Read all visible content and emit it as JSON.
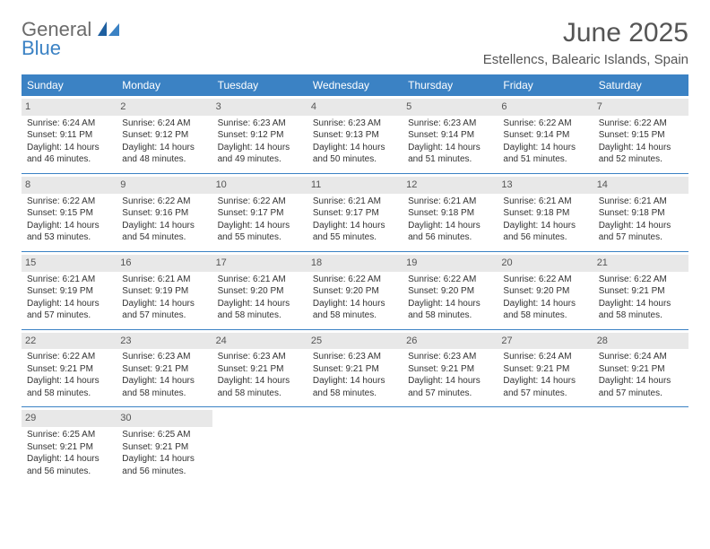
{
  "brand": {
    "text1": "General",
    "text2": "Blue"
  },
  "title": "June 2025",
  "location": "Estellencs, Balearic Islands, Spain",
  "colors": {
    "header_bg": "#3b82c4",
    "header_text": "#ffffff",
    "daynum_bg": "#e8e8e8",
    "body_text": "#333333",
    "title_text": "#555555",
    "row_divider": "#3b82c4"
  },
  "day_headers": [
    "Sunday",
    "Monday",
    "Tuesday",
    "Wednesday",
    "Thursday",
    "Friday",
    "Saturday"
  ],
  "weeks": [
    [
      {
        "n": "1",
        "sunrise": "6:24 AM",
        "sunset": "9:11 PM",
        "daylight": "14 hours and 46 minutes."
      },
      {
        "n": "2",
        "sunrise": "6:24 AM",
        "sunset": "9:12 PM",
        "daylight": "14 hours and 48 minutes."
      },
      {
        "n": "3",
        "sunrise": "6:23 AM",
        "sunset": "9:12 PM",
        "daylight": "14 hours and 49 minutes."
      },
      {
        "n": "4",
        "sunrise": "6:23 AM",
        "sunset": "9:13 PM",
        "daylight": "14 hours and 50 minutes."
      },
      {
        "n": "5",
        "sunrise": "6:23 AM",
        "sunset": "9:14 PM",
        "daylight": "14 hours and 51 minutes."
      },
      {
        "n": "6",
        "sunrise": "6:22 AM",
        "sunset": "9:14 PM",
        "daylight": "14 hours and 51 minutes."
      },
      {
        "n": "7",
        "sunrise": "6:22 AM",
        "sunset": "9:15 PM",
        "daylight": "14 hours and 52 minutes."
      }
    ],
    [
      {
        "n": "8",
        "sunrise": "6:22 AM",
        "sunset": "9:15 PM",
        "daylight": "14 hours and 53 minutes."
      },
      {
        "n": "9",
        "sunrise": "6:22 AM",
        "sunset": "9:16 PM",
        "daylight": "14 hours and 54 minutes."
      },
      {
        "n": "10",
        "sunrise": "6:22 AM",
        "sunset": "9:17 PM",
        "daylight": "14 hours and 55 minutes."
      },
      {
        "n": "11",
        "sunrise": "6:21 AM",
        "sunset": "9:17 PM",
        "daylight": "14 hours and 55 minutes."
      },
      {
        "n": "12",
        "sunrise": "6:21 AM",
        "sunset": "9:18 PM",
        "daylight": "14 hours and 56 minutes."
      },
      {
        "n": "13",
        "sunrise": "6:21 AM",
        "sunset": "9:18 PM",
        "daylight": "14 hours and 56 minutes."
      },
      {
        "n": "14",
        "sunrise": "6:21 AM",
        "sunset": "9:18 PM",
        "daylight": "14 hours and 57 minutes."
      }
    ],
    [
      {
        "n": "15",
        "sunrise": "6:21 AM",
        "sunset": "9:19 PM",
        "daylight": "14 hours and 57 minutes."
      },
      {
        "n": "16",
        "sunrise": "6:21 AM",
        "sunset": "9:19 PM",
        "daylight": "14 hours and 57 minutes."
      },
      {
        "n": "17",
        "sunrise": "6:21 AM",
        "sunset": "9:20 PM",
        "daylight": "14 hours and 58 minutes."
      },
      {
        "n": "18",
        "sunrise": "6:22 AM",
        "sunset": "9:20 PM",
        "daylight": "14 hours and 58 minutes."
      },
      {
        "n": "19",
        "sunrise": "6:22 AM",
        "sunset": "9:20 PM",
        "daylight": "14 hours and 58 minutes."
      },
      {
        "n": "20",
        "sunrise": "6:22 AM",
        "sunset": "9:20 PM",
        "daylight": "14 hours and 58 minutes."
      },
      {
        "n": "21",
        "sunrise": "6:22 AM",
        "sunset": "9:21 PM",
        "daylight": "14 hours and 58 minutes."
      }
    ],
    [
      {
        "n": "22",
        "sunrise": "6:22 AM",
        "sunset": "9:21 PM",
        "daylight": "14 hours and 58 minutes."
      },
      {
        "n": "23",
        "sunrise": "6:23 AM",
        "sunset": "9:21 PM",
        "daylight": "14 hours and 58 minutes."
      },
      {
        "n": "24",
        "sunrise": "6:23 AM",
        "sunset": "9:21 PM",
        "daylight": "14 hours and 58 minutes."
      },
      {
        "n": "25",
        "sunrise": "6:23 AM",
        "sunset": "9:21 PM",
        "daylight": "14 hours and 58 minutes."
      },
      {
        "n": "26",
        "sunrise": "6:23 AM",
        "sunset": "9:21 PM",
        "daylight": "14 hours and 57 minutes."
      },
      {
        "n": "27",
        "sunrise": "6:24 AM",
        "sunset": "9:21 PM",
        "daylight": "14 hours and 57 minutes."
      },
      {
        "n": "28",
        "sunrise": "6:24 AM",
        "sunset": "9:21 PM",
        "daylight": "14 hours and 57 minutes."
      }
    ],
    [
      {
        "n": "29",
        "sunrise": "6:25 AM",
        "sunset": "9:21 PM",
        "daylight": "14 hours and 56 minutes."
      },
      {
        "n": "30",
        "sunrise": "6:25 AM",
        "sunset": "9:21 PM",
        "daylight": "14 hours and 56 minutes."
      },
      null,
      null,
      null,
      null,
      null
    ]
  ],
  "labels": {
    "sunrise": "Sunrise:",
    "sunset": "Sunset:",
    "daylight": "Daylight:"
  }
}
